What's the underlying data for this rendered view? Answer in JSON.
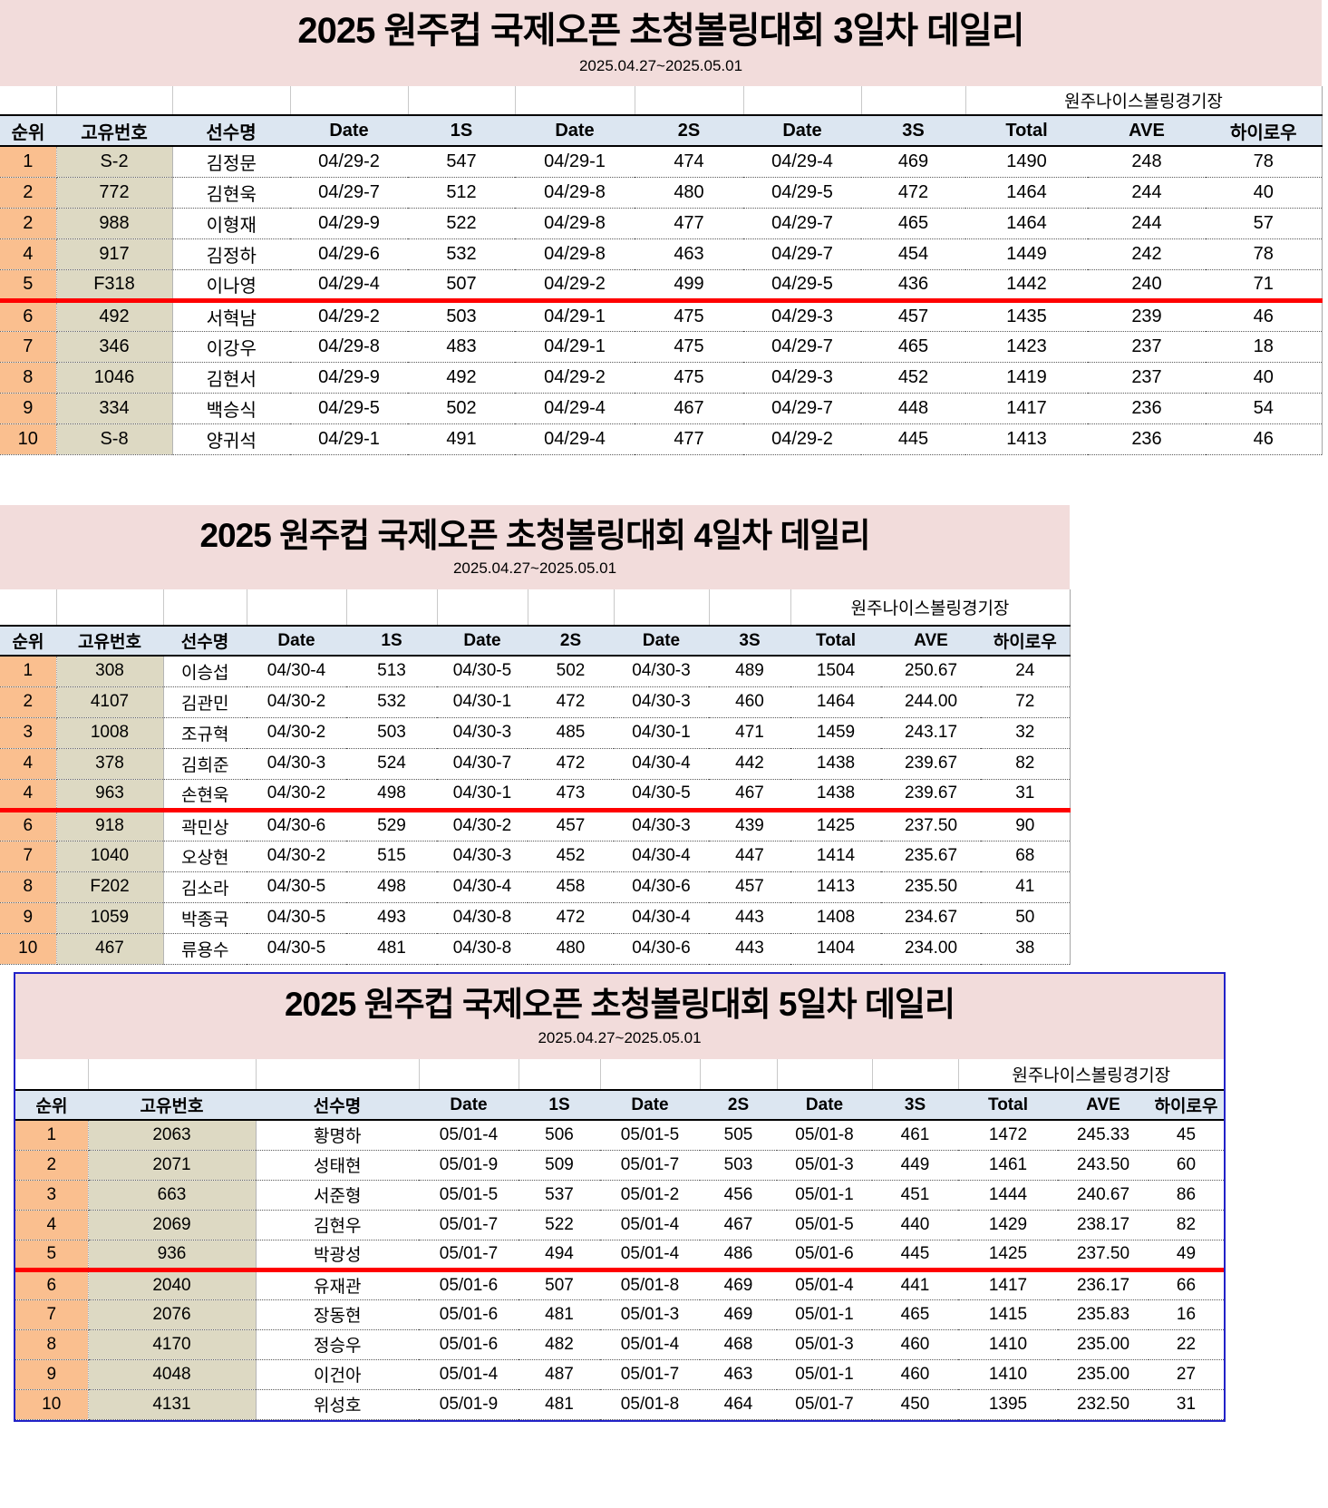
{
  "tables": [
    {
      "title": "2025 원주컵 국제오픈 초청볼링대회 3일차 데일리",
      "subtitle": "2025.04.27~2025.05.01",
      "venue": "원주나이스볼링경기장",
      "headers": [
        "순위",
        "고유번호",
        "선수명",
        "Date",
        "1S",
        "Date",
        "2S",
        "Date",
        "3S",
        "Total",
        "AVE",
        "하이로우"
      ],
      "red_line_after_row": 5,
      "rows": [
        {
          "rank": "1",
          "id": "S-2",
          "name": "김정문",
          "date1": "04/29-2",
          "s1": "547",
          "date2": "04/29-1",
          "s2": "474",
          "date3": "04/29-4",
          "s3": "469",
          "total": "1490",
          "ave": "248",
          "hilow": "78"
        },
        {
          "rank": "2",
          "id": "772",
          "name": "김현욱",
          "date1": "04/29-7",
          "s1": "512",
          "date2": "04/29-8",
          "s2": "480",
          "date3": "04/29-5",
          "s3": "472",
          "total": "1464",
          "ave": "244",
          "hilow": "40"
        },
        {
          "rank": "2",
          "id": "988",
          "name": "이형재",
          "date1": "04/29-9",
          "s1": "522",
          "date2": "04/29-8",
          "s2": "477",
          "date3": "04/29-7",
          "s3": "465",
          "total": "1464",
          "ave": "244",
          "hilow": "57"
        },
        {
          "rank": "4",
          "id": "917",
          "name": "김정하",
          "date1": "04/29-6",
          "s1": "532",
          "date2": "04/29-8",
          "s2": "463",
          "date3": "04/29-7",
          "s3": "454",
          "total": "1449",
          "ave": "242",
          "hilow": "78"
        },
        {
          "rank": "5",
          "id": "F318",
          "name": "이나영",
          "date1": "04/29-4",
          "s1": "507",
          "date2": "04/29-2",
          "s2": "499",
          "date3": "04/29-5",
          "s3": "436",
          "total": "1442",
          "ave": "240",
          "hilow": "71"
        },
        {
          "rank": "6",
          "id": "492",
          "name": "서혁남",
          "date1": "04/29-2",
          "s1": "503",
          "date2": "04/29-1",
          "s2": "475",
          "date3": "04/29-3",
          "s3": "457",
          "total": "1435",
          "ave": "239",
          "hilow": "46"
        },
        {
          "rank": "7",
          "id": "346",
          "name": "이강우",
          "date1": "04/29-8",
          "s1": "483",
          "date2": "04/29-1",
          "s2": "475",
          "date3": "04/29-7",
          "s3": "465",
          "total": "1423",
          "ave": "237",
          "hilow": "18"
        },
        {
          "rank": "8",
          "id": "1046",
          "name": "김현서",
          "date1": "04/29-9",
          "s1": "492",
          "date2": "04/29-2",
          "s2": "475",
          "date3": "04/29-3",
          "s3": "452",
          "total": "1419",
          "ave": "237",
          "hilow": "40"
        },
        {
          "rank": "9",
          "id": "334",
          "name": "백승식",
          "date1": "04/29-5",
          "s1": "502",
          "date2": "04/29-4",
          "s2": "467",
          "date3": "04/29-7",
          "s3": "448",
          "total": "1417",
          "ave": "236",
          "hilow": "54"
        },
        {
          "rank": "10",
          "id": "S-8",
          "name": "양귀석",
          "date1": "04/29-1",
          "s1": "491",
          "date2": "04/29-4",
          "s2": "477",
          "date3": "04/29-2",
          "s3": "445",
          "total": "1413",
          "ave": "236",
          "hilow": "46"
        }
      ]
    },
    {
      "title": "2025 원주컵 국제오픈 초청볼링대회 4일차 데일리",
      "subtitle": "2025.04.27~2025.05.01",
      "venue": "원주나이스볼링경기장",
      "headers": [
        "순위",
        "고유번호",
        "선수명",
        "Date",
        "1S",
        "Date",
        "2S",
        "Date",
        "3S",
        "Total",
        "AVE",
        "하이로우"
      ],
      "red_line_after_row": 5,
      "rows": [
        {
          "rank": "1",
          "id": "308",
          "name": "이승섭",
          "date1": "04/30-4",
          "s1": "513",
          "date2": "04/30-5",
          "s2": "502",
          "date3": "04/30-3",
          "s3": "489",
          "total": "1504",
          "ave": "250.67",
          "hilow": "24"
        },
        {
          "rank": "2",
          "id": "4107",
          "name": "김관민",
          "date1": "04/30-2",
          "s1": "532",
          "date2": "04/30-1",
          "s2": "472",
          "date3": "04/30-3",
          "s3": "460",
          "total": "1464",
          "ave": "244.00",
          "hilow": "72"
        },
        {
          "rank": "3",
          "id": "1008",
          "name": "조규혁",
          "date1": "04/30-2",
          "s1": "503",
          "date2": "04/30-3",
          "s2": "485",
          "date3": "04/30-1",
          "s3": "471",
          "total": "1459",
          "ave": "243.17",
          "hilow": "32"
        },
        {
          "rank": "4",
          "id": "378",
          "name": "김희준",
          "date1": "04/30-3",
          "s1": "524",
          "date2": "04/30-7",
          "s2": "472",
          "date3": "04/30-4",
          "s3": "442",
          "total": "1438",
          "ave": "239.67",
          "hilow": "82"
        },
        {
          "rank": "4",
          "id": "963",
          "name": "손현욱",
          "date1": "04/30-2",
          "s1": "498",
          "date2": "04/30-1",
          "s2": "473",
          "date3": "04/30-5",
          "s3": "467",
          "total": "1438",
          "ave": "239.67",
          "hilow": "31"
        },
        {
          "rank": "6",
          "id": "918",
          "name": "곽민상",
          "date1": "04/30-6",
          "s1": "529",
          "date2": "04/30-2",
          "s2": "457",
          "date3": "04/30-3",
          "s3": "439",
          "total": "1425",
          "ave": "237.50",
          "hilow": "90"
        },
        {
          "rank": "7",
          "id": "1040",
          "name": "오상현",
          "date1": "04/30-2",
          "s1": "515",
          "date2": "04/30-3",
          "s2": "452",
          "date3": "04/30-4",
          "s3": "447",
          "total": "1414",
          "ave": "235.67",
          "hilow": "68"
        },
        {
          "rank": "8",
          "id": "F202",
          "name": "김소라",
          "date1": "04/30-5",
          "s1": "498",
          "date2": "04/30-4",
          "s2": "458",
          "date3": "04/30-6",
          "s3": "457",
          "total": "1413",
          "ave": "235.50",
          "hilow": "41"
        },
        {
          "rank": "9",
          "id": "1059",
          "name": "박종국",
          "date1": "04/30-5",
          "s1": "493",
          "date2": "04/30-8",
          "s2": "472",
          "date3": "04/30-4",
          "s3": "443",
          "total": "1408",
          "ave": "234.67",
          "hilow": "50"
        },
        {
          "rank": "10",
          "id": "467",
          "name": "류용수",
          "date1": "04/30-5",
          "s1": "481",
          "date2": "04/30-8",
          "s2": "480",
          "date3": "04/30-6",
          "s3": "443",
          "total": "1404",
          "ave": "234.00",
          "hilow": "38"
        }
      ]
    },
    {
      "title": "2025 원주컵 국제오픈 초청볼링대회 5일차 데일리",
      "subtitle": "2025.04.27~2025.05.01",
      "venue": "원주나이스볼링경기장",
      "headers": [
        "순위",
        "고유번호",
        "선수명",
        "Date",
        "1S",
        "Date",
        "2S",
        "Date",
        "3S",
        "Total",
        "AVE",
        "하이로우"
      ],
      "red_line_after_row": 5,
      "rows": [
        {
          "rank": "1",
          "id": "2063",
          "name": "황명하",
          "date1": "05/01-4",
          "s1": "506",
          "date2": "05/01-5",
          "s2": "505",
          "date3": "05/01-8",
          "s3": "461",
          "total": "1472",
          "ave": "245.33",
          "hilow": "45"
        },
        {
          "rank": "2",
          "id": "2071",
          "name": "성태현",
          "date1": "05/01-9",
          "s1": "509",
          "date2": "05/01-7",
          "s2": "503",
          "date3": "05/01-3",
          "s3": "449",
          "total": "1461",
          "ave": "243.50",
          "hilow": "60"
        },
        {
          "rank": "3",
          "id": "663",
          "name": "서준형",
          "date1": "05/01-5",
          "s1": "537",
          "date2": "05/01-2",
          "s2": "456",
          "date3": "05/01-1",
          "s3": "451",
          "total": "1444",
          "ave": "240.67",
          "hilow": "86"
        },
        {
          "rank": "4",
          "id": "2069",
          "name": "김현우",
          "date1": "05/01-7",
          "s1": "522",
          "date2": "05/01-4",
          "s2": "467",
          "date3": "05/01-5",
          "s3": "440",
          "total": "1429",
          "ave": "238.17",
          "hilow": "82"
        },
        {
          "rank": "5",
          "id": "936",
          "name": "박광성",
          "date1": "05/01-7",
          "s1": "494",
          "date2": "05/01-4",
          "s2": "486",
          "date3": "05/01-6",
          "s3": "445",
          "total": "1425",
          "ave": "237.50",
          "hilow": "49"
        },
        {
          "rank": "6",
          "id": "2040",
          "name": "유재관",
          "date1": "05/01-6",
          "s1": "507",
          "date2": "05/01-8",
          "s2": "469",
          "date3": "05/01-4",
          "s3": "441",
          "total": "1417",
          "ave": "236.17",
          "hilow": "66"
        },
        {
          "rank": "7",
          "id": "2076",
          "name": "장동현",
          "date1": "05/01-6",
          "s1": "481",
          "date2": "05/01-3",
          "s2": "469",
          "date3": "05/01-1",
          "s3": "465",
          "total": "1415",
          "ave": "235.83",
          "hilow": "16"
        },
        {
          "rank": "8",
          "id": "4170",
          "name": "정승우",
          "date1": "05/01-6",
          "s1": "482",
          "date2": "05/01-4",
          "s2": "468",
          "date3": "05/01-3",
          "s3": "460",
          "total": "1410",
          "ave": "235.00",
          "hilow": "22"
        },
        {
          "rank": "9",
          "id": "4048",
          "name": "이건아",
          "date1": "05/01-4",
          "s1": "487",
          "date2": "05/01-7",
          "s2": "463",
          "date3": "05/01-1",
          "s3": "460",
          "total": "1410",
          "ave": "235.00",
          "hilow": "27"
        },
        {
          "rank": "10",
          "id": "4131",
          "name": "위성호",
          "date1": "05/01-9",
          "s1": "481",
          "date2": "05/01-8",
          "s2": "464",
          "date3": "05/01-7",
          "s3": "450",
          "total": "1395",
          "ave": "232.50",
          "hilow": "31"
        }
      ]
    }
  ],
  "colors": {
    "title_bg": "#f2dcdb",
    "header_bg": "#dce6f1",
    "rank_bg": "#fabf8f",
    "id_bg": "#ddd9c3",
    "red_line": "#ff0000",
    "table3_border": "#2222c8"
  }
}
